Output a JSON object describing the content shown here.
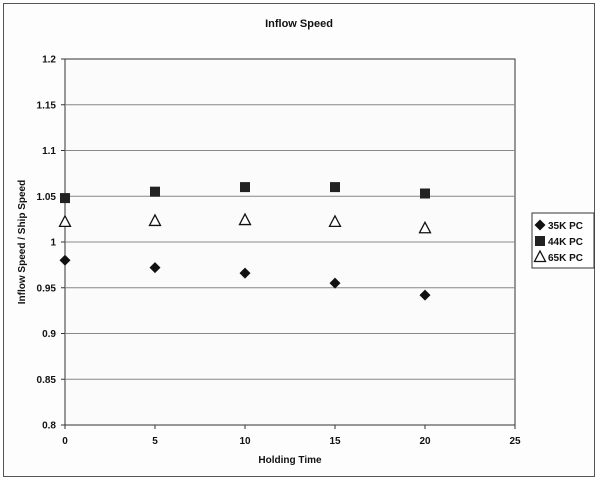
{
  "chart_data": {
    "type": "scatter",
    "title": "Inflow Speed",
    "xlabel": "Holding Time",
    "ylabel": "Inflow Speed / Ship Speed",
    "xlim": [
      0,
      25
    ],
    "ylim": [
      0.8,
      1.2
    ],
    "x_ticks": [
      "0",
      "5",
      "10",
      "15",
      "20",
      "25"
    ],
    "y_ticks": [
      "0.8",
      "0.85",
      "0.9",
      "0.95",
      "1",
      "1.05",
      "1.1",
      "1.15",
      "1.2"
    ],
    "grid": "horizontal",
    "legend": "right",
    "series": [
      {
        "name": "35K PC",
        "marker": "diamond",
        "color": "#111111",
        "points": [
          [
            0,
            0.98
          ],
          [
            5,
            0.972
          ],
          [
            10,
            0.966
          ],
          [
            15,
            0.955
          ],
          [
            20,
            0.942
          ]
        ]
      },
      {
        "name": "44K PC",
        "marker": "square",
        "color": "#222222",
        "points": [
          [
            0,
            1.048
          ],
          [
            5,
            1.055
          ],
          [
            10,
            1.06
          ],
          [
            15,
            1.06
          ],
          [
            20,
            1.053
          ]
        ]
      },
      {
        "name": "65K PC",
        "marker": "triangle-open",
        "color": "#111111",
        "points": [
          [
            0,
            1.022
          ],
          [
            5,
            1.023
          ],
          [
            10,
            1.024
          ],
          [
            15,
            1.022
          ],
          [
            20,
            1.015
          ]
        ]
      }
    ]
  }
}
